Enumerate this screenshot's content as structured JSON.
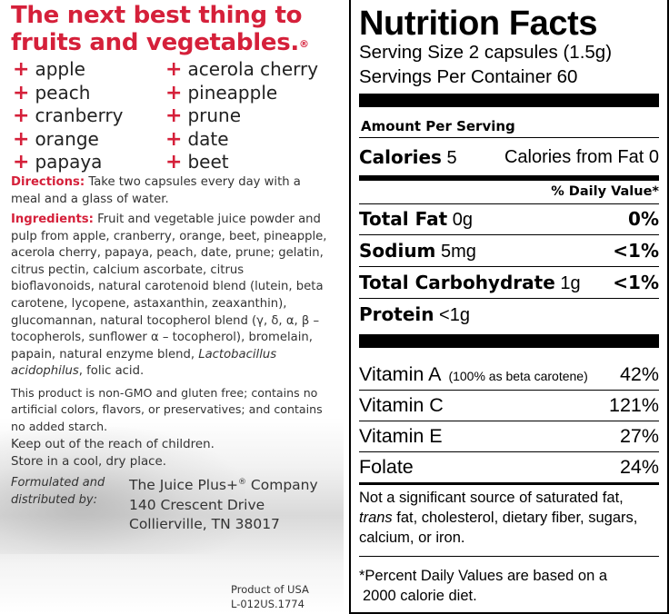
{
  "left": {
    "headline_line1": "The next best thing to",
    "headline_line2": "fruits and vegetables.",
    "headline_mark": "®",
    "plus_symbol": "+",
    "fruits_col1": [
      "apple",
      "peach",
      "cranberry",
      "orange",
      "papaya"
    ],
    "fruits_col2": [
      "acerola cherry",
      "pineapple",
      "prune",
      "date",
      "beet"
    ],
    "directions_label": "Directions:",
    "directions_text": " Take two capsules every day with a meal and a glass of water.",
    "ingredients_label": "Ingredients:",
    "ingredients_text": " Fruit and vegetable juice powder and pulp from apple, cranberry, orange, beet, pineapple, acerola cherry, papaya, peach, date, prune; gelatin, citrus pectin, calcium ascorbate, citrus bioflavonoids, natural carotenoid blend (lutein, beta carotene, lycopene, astaxanthin, zeaxanthin), glucomannan, natural tocopherol blend (γ, δ, α, β – tocopherols, sunflower α – tocopherol), bromelain, papain, natural enzyme blend, ",
    "ingredients_italic": "Lactobacillus acidophilus",
    "ingredients_end": ", folic acid.",
    "non_gmo": "This product is non-GMO and gluten free; contains no artificial colors, flavors, or preservatives; and contains no added starch.",
    "keep_out": "Keep out of the reach of children.",
    "store": "Store in a cool, dry place.",
    "formulated_label": "Formulated and distributed by:",
    "company": "The Juice Plus+",
    "company_mark": "®",
    "company_suffix": " Company",
    "address_line1": "140 Crescent Drive",
    "address_line2": "Collierville, TN 38017",
    "product_of": "Product of USA",
    "lot_code": "L-012US.1774"
  },
  "nutrition": {
    "title": "Nutrition Facts",
    "serving_size": "Serving Size 2 capsules (1.5g)",
    "servings_per_container": "Servings Per Container 60",
    "amount_per_serving": "Amount Per Serving",
    "calories_label": "Calories",
    "calories_value": " 5",
    "calories_from_fat": "Calories from Fat 0",
    "daily_value_header": "% Daily Value*",
    "nutrients": [
      {
        "label": "Total Fat",
        "amount": " 0g",
        "dv": "0%"
      },
      {
        "label": "Sodium",
        "amount": " 5mg",
        "dv": "<1%"
      },
      {
        "label": "Total Carbohydrate",
        "amount": " 1g",
        "dv": "<1%"
      },
      {
        "label": "Protein",
        "amount": " <1g",
        "dv": ""
      }
    ],
    "vitamins": [
      {
        "label": "Vitamin A",
        "note": "(100% as beta carotene)",
        "dv": "42%"
      },
      {
        "label": "Vitamin C",
        "note": "",
        "dv": "121%"
      },
      {
        "label": "Vitamin E",
        "note": "",
        "dv": "27%"
      },
      {
        "label": "Folate",
        "note": "",
        "dv": "24%"
      }
    ],
    "not_significant_1": "Not a significant source of saturated fat,",
    "not_significant_trans": "trans",
    "not_significant_2": " fat, cholesterol, dietary fiber, sugars,",
    "not_significant_3": "calcium, or iron.",
    "footnote_1": "*Percent Daily Values are based on a",
    "footnote_2": "2000 calorie diet."
  },
  "colors": {
    "accent_red": "#d5203a",
    "text": "#222222",
    "label_black": "#000000"
  }
}
